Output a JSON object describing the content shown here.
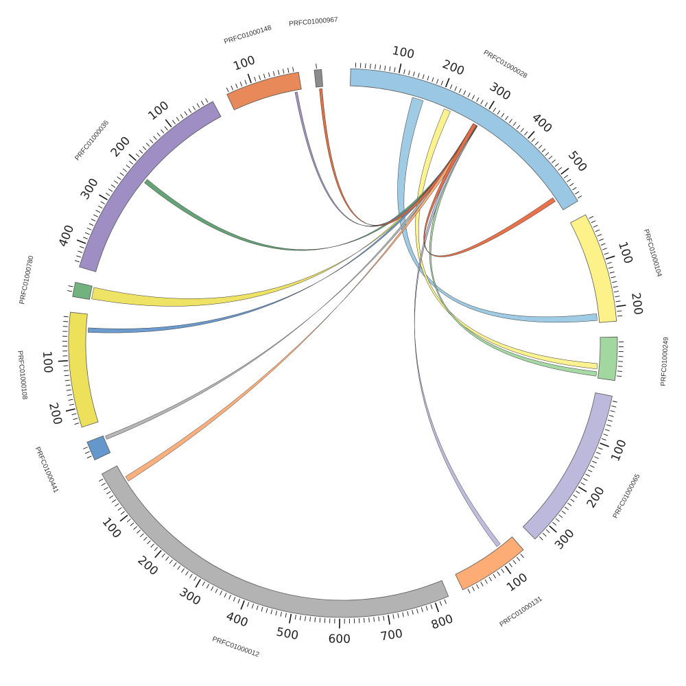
{
  "chart_data": {
    "type": "chord",
    "segments": [
      {
        "id": "PRFC01000028",
        "label": "PRFC01000028",
        "length": 565,
        "color": "#9ac8e4",
        "reversed": false,
        "tick_labels": [
          "100",
          "200",
          "300",
          "400",
          "500"
        ]
      },
      {
        "id": "PRFC01000104",
        "label": "PRFC01000104",
        "length": 230,
        "color": "#fdf18a",
        "reversed": false,
        "tick_labels": [
          "100",
          "200"
        ]
      },
      {
        "id": "PRFC01000249",
        "label": "PRFC01000249",
        "length": 90,
        "color": "#a2d79f",
        "reversed": false,
        "tick_labels": []
      },
      {
        "id": "PRFC01000065",
        "label": "PRFC01000065",
        "length": 340,
        "color": "#bcb9dc",
        "reversed": false,
        "tick_labels": [
          "100",
          "200",
          "300"
        ]
      },
      {
        "id": "PRFC01000131",
        "label": "PRFC01000131",
        "length": 150,
        "color": "#fdac76",
        "reversed": true,
        "tick_labels": [
          "100"
        ]
      },
      {
        "id": "PRFC01000012",
        "label": "PRFC01000012",
        "length": 830,
        "color": "#b3b3b3",
        "reversed": true,
        "tick_labels": [
          "100",
          "200",
          "300",
          "400",
          "500",
          "600",
          "700",
          "800"
        ]
      },
      {
        "id": "PRFC01000441",
        "label": "PRFC01000441",
        "length": 40,
        "color": "#6497cc",
        "reversed": true,
        "tick_labels": []
      },
      {
        "id": "PRFC01000108",
        "label": "PRFC01000108",
        "length": 240,
        "color": "#ede15c",
        "reversed": true,
        "tick_labels": [
          "100",
          "200"
        ]
      },
      {
        "id": "PRFC01000780",
        "label": "PRFC01000780",
        "length": 30,
        "color": "#71b27e",
        "reversed": true,
        "tick_labels": []
      },
      {
        "id": "PRFC01000036",
        "label": "PRFC01000036",
        "length": 450,
        "color": "#9e8ec3",
        "reversed": true,
        "tick_labels": [
          "100",
          "200",
          "300",
          "400"
        ]
      },
      {
        "id": "PRFC01000148",
        "label": "PRFC01000148",
        "length": 155,
        "color": "#e8895a",
        "reversed": true,
        "tick_labels": [
          "100"
        ]
      },
      {
        "id": "PRFC01000967",
        "label": "PRFC01000967",
        "length": 15,
        "color": "#8c8c8c",
        "reversed": true,
        "tick_labels": []
      }
    ],
    "links": [
      {
        "from": "PRFC01000028",
        "from_range": [
          140,
          165
        ],
        "to": "PRFC01000104",
        "to_range": [
          210,
          225
        ],
        "color": "#9ac8e4"
      },
      {
        "from": "PRFC01000028",
        "from_range": [
          215,
          230
        ],
        "to": "PRFC01000249",
        "to_range": [
          58,
          70
        ],
        "color": "#fdf18a"
      },
      {
        "from": "PRFC01000028",
        "from_range": [
          290,
          298
        ],
        "to": "PRFC01000249",
        "to_range": [
          76,
          86
        ],
        "color": "#a2d79f"
      },
      {
        "from": "PRFC01000028",
        "from_range": [
          290,
          298
        ],
        "to": "PRFC01000036",
        "to_range": [
          215,
          225
        ],
        "color": "#5c9e6e"
      },
      {
        "from": "PRFC01000028",
        "from_range": [
          289,
          297
        ],
        "to": "PRFC01000780",
        "to_range": [
          2,
          28
        ],
        "color": "#ede15c"
      },
      {
        "from": "PRFC01000028",
        "from_range": [
          288,
          296
        ],
        "to": "PRFC01000108",
        "to_range": [
          30,
          40
        ],
        "color": "#6497cc"
      },
      {
        "from": "PRFC01000028",
        "from_range": [
          287,
          295
        ],
        "to": "PRFC01000441",
        "to_range": [
          2,
          10
        ],
        "color": "#b3b3b3"
      },
      {
        "from": "PRFC01000028",
        "from_range": [
          289,
          297
        ],
        "to": "PRFC01000148",
        "to_range": [
          10,
          15
        ],
        "color": "#9e8ec3"
      },
      {
        "from": "PRFC01000028",
        "from_range": [
          288,
          296
        ],
        "to": "PRFC01000967",
        "to_range": [
          2,
          8
        ],
        "color": "#e06a3a"
      },
      {
        "from": "PRFC01000028",
        "from_range": [
          289,
          297
        ],
        "to": "PRFC01000012",
        "to_range": [
          30,
          42
        ],
        "color": "#fdac76"
      },
      {
        "from": "PRFC01000028",
        "from_range": [
          288,
          296
        ],
        "to": "PRFC01000131",
        "to_range": [
          110,
          120
        ],
        "color": "#bcb9dc"
      },
      {
        "from": "PRFC01000028",
        "from_range": [
          530,
          540
        ],
        "to": "PRFC01000028",
        "to_range": [
          287,
          295
        ],
        "color": "#e8693f"
      }
    ]
  }
}
